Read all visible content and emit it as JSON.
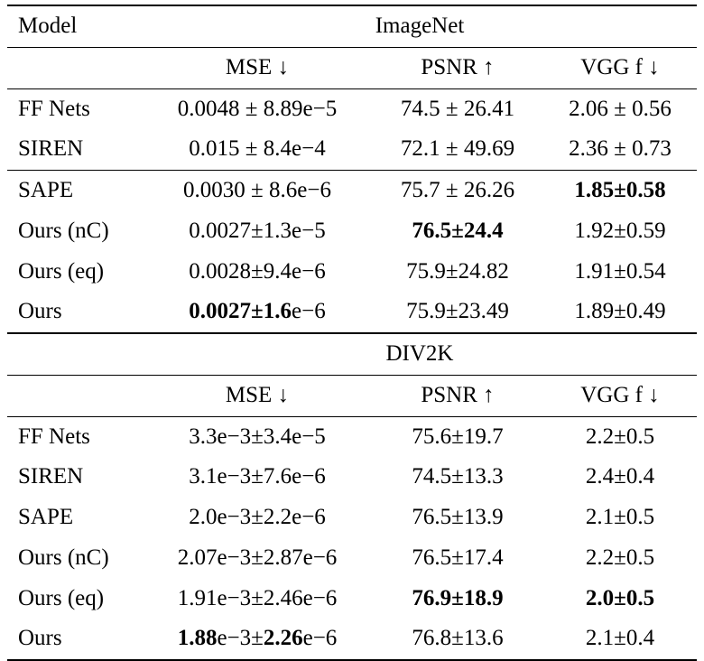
{
  "table": {
    "model_header": "Model",
    "sections": [
      {
        "title": "ImageNet",
        "columns": [
          "MSE ↓",
          "PSNR ↑",
          "VGG f ↓"
        ],
        "row_groups": [
          [
            {
              "model": "FF Nets",
              "mse": [
                [
                  "0.0048 ± 8.89e−5",
                  false
                ]
              ],
              "psnr": [
                [
                  "74.5 ± 26.41",
                  false
                ]
              ],
              "vgg": [
                [
                  "2.06 ± 0.56",
                  false
                ]
              ]
            },
            {
              "model": "SIREN",
              "mse": [
                [
                  "0.015 ± 8.4e−4",
                  false
                ]
              ],
              "psnr": [
                [
                  "72.1 ± 49.69",
                  false
                ]
              ],
              "vgg": [
                [
                  "2.36 ± 0.73",
                  false
                ]
              ]
            }
          ],
          [
            {
              "model": "SAPE",
              "mse": [
                [
                  "0.0030 ± 8.6e−6",
                  false
                ]
              ],
              "psnr": [
                [
                  "75.7 ± 26.26",
                  false
                ]
              ],
              "vgg": [
                [
                  "1.85±0.58",
                  true
                ]
              ]
            },
            {
              "model": "Ours (nC)",
              "mse": [
                [
                  "0.0027±1.3e−5",
                  false
                ]
              ],
              "psnr": [
                [
                  "76.5±24.4",
                  true
                ]
              ],
              "vgg": [
                [
                  "1.92±0.59",
                  false
                ]
              ]
            },
            {
              "model": "Ours (eq)",
              "mse": [
                [
                  "0.0028±9.4e−6",
                  false
                ]
              ],
              "psnr": [
                [
                  "75.9±24.82",
                  false
                ]
              ],
              "vgg": [
                [
                  "1.91±0.54",
                  false
                ]
              ]
            },
            {
              "model": "Ours",
              "mse": [
                [
                  "0.0027±1.6",
                  true
                ],
                [
                  "e−6",
                  false
                ]
              ],
              "psnr": [
                [
                  "75.9±23.49",
                  false
                ]
              ],
              "vgg": [
                [
                  "1.89±0.49",
                  false
                ]
              ]
            }
          ]
        ]
      },
      {
        "title": "DIV2K",
        "columns": [
          "MSE ↓",
          "PSNR ↑",
          "VGG f ↓"
        ],
        "row_groups": [
          [
            {
              "model": "FF Nets",
              "mse": [
                [
                  "3.3e−3±3.4e−5",
                  false
                ]
              ],
              "psnr": [
                [
                  "75.6±19.7",
                  false
                ]
              ],
              "vgg": [
                [
                  "2.2±0.5",
                  false
                ]
              ]
            },
            {
              "model": "SIREN",
              "mse": [
                [
                  "3.1e−3±7.6e−6",
                  false
                ]
              ],
              "psnr": [
                [
                  "74.5±13.3",
                  false
                ]
              ],
              "vgg": [
                [
                  "2.4±0.4",
                  false
                ]
              ]
            },
            {
              "model": "SAPE",
              "mse": [
                [
                  "2.0e−3±2.2e−6",
                  false
                ]
              ],
              "psnr": [
                [
                  "76.5±13.9",
                  false
                ]
              ],
              "vgg": [
                [
                  "2.1±0.5",
                  false
                ]
              ]
            },
            {
              "model": "Ours (nC)",
              "mse": [
                [
                  "2.07e−3±2.87e−6",
                  false
                ]
              ],
              "psnr": [
                [
                  "76.5±17.4",
                  false
                ]
              ],
              "vgg": [
                [
                  "2.2±0.5",
                  false
                ]
              ]
            },
            {
              "model": "Ours (eq)",
              "mse": [
                [
                  "1.91e−3±2.46e−6",
                  false
                ]
              ],
              "psnr": [
                [
                  "76.9±18.9",
                  true
                ]
              ],
              "vgg": [
                [
                  "2.0±0.5",
                  true
                ]
              ]
            },
            {
              "model": "Ours",
              "mse": [
                [
                  "1.88",
                  true
                ],
                [
                  "e−3±",
                  false
                ],
                [
                  "2.26",
                  true
                ],
                [
                  "e−6",
                  false
                ]
              ],
              "psnr": [
                [
                  "76.8±13.6",
                  false
                ]
              ],
              "vgg": [
                [
                  "2.1±0.4",
                  false
                ]
              ]
            }
          ]
        ]
      }
    ]
  }
}
